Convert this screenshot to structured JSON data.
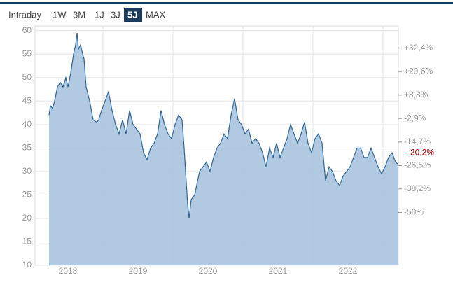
{
  "tabs": [
    "Intraday",
    "1W",
    "3M",
    "1J",
    "3J",
    "5J",
    "MAX"
  ],
  "active_tab": 5,
  "chart_data": {
    "type": "area",
    "color": "#2f6596",
    "fill": "#a9c3de",
    "x": [
      2018.23,
      2018.25,
      2018.28,
      2018.31,
      2018.35,
      2018.39,
      2018.43,
      2018.47,
      2018.5,
      2018.54,
      2018.58,
      2018.61,
      2018.63,
      2018.65,
      2018.68,
      2018.71,
      2018.73,
      2018.76,
      2018.81,
      2018.86,
      2018.91,
      2018.94,
      2018.98,
      2019.03,
      2019.08,
      2019.13,
      2019.18,
      2019.23,
      2019.28,
      2019.33,
      2019.38,
      2019.43,
      2019.48,
      2019.53,
      2019.58,
      2019.63,
      2019.68,
      2019.73,
      2019.78,
      2019.83,
      2019.88,
      2019.93,
      2019.98,
      2020.03,
      2020.08,
      2020.13,
      2020.16,
      2020.18,
      2020.21,
      2020.23,
      2020.26,
      2020.31,
      2020.38,
      2020.43,
      2020.48,
      2020.53,
      2020.58,
      2020.63,
      2020.68,
      2020.73,
      2020.78,
      2020.83,
      2020.88,
      2020.93,
      2020.98,
      2021.03,
      2021.08,
      2021.13,
      2021.18,
      2021.23,
      2021.28,
      2021.33,
      2021.38,
      2021.43,
      2021.48,
      2021.53,
      2021.58,
      2021.63,
      2021.68,
      2021.73,
      2021.78,
      2021.83,
      2021.88,
      2021.93,
      2021.98,
      2022.03,
      2022.08,
      2022.13,
      2022.18,
      2022.23,
      2022.28,
      2022.33,
      2022.38,
      2022.43,
      2022.48,
      2022.53,
      2022.58,
      2022.63,
      2022.68,
      2022.73,
      2022.78,
      2022.83,
      2022.88,
      2022.93,
      2022.98,
      2023.03,
      2023.08,
      2023.13,
      2023.18,
      2023.22
    ],
    "values": [
      42,
      44,
      43.5,
      45,
      48,
      49,
      48,
      50,
      48,
      51,
      55,
      57,
      59.5,
      56,
      57,
      55,
      54,
      48,
      45,
      41,
      40.5,
      41,
      43,
      45,
      47,
      43,
      40,
      38,
      41,
      38,
      43,
      40,
      39,
      38,
      34,
      32.5,
      35,
      36,
      38,
      43,
      40,
      38,
      37,
      40,
      42,
      41,
      35,
      30,
      23,
      20,
      24,
      25,
      30,
      31,
      32,
      30,
      33,
      35,
      36,
      38,
      37,
      42,
      45.5,
      41,
      40,
      38,
      39,
      36,
      37,
      36,
      34,
      31,
      35,
      33,
      36,
      33,
      35,
      37,
      40,
      38,
      36,
      38,
      40.5,
      36,
      34,
      37,
      38,
      36,
      28,
      31,
      30,
      28,
      27,
      29,
      30,
      31,
      33,
      35,
      35,
      33,
      33,
      35,
      33,
      31,
      29.5,
      31,
      33,
      34,
      32,
      31.5
    ],
    "xlim": [
      2018.03,
      2023.22
    ],
    "xticks": [
      {
        "value": 2018.5,
        "label": "2018"
      },
      {
        "value": 2019.5,
        "label": "2019"
      },
      {
        "value": 2020.5,
        "label": "2020"
      },
      {
        "value": 2021.5,
        "label": "2021"
      },
      {
        "value": 2022.5,
        "label": "2022"
      }
    ],
    "xgrid": [
      2019,
      2020,
      2021,
      2022,
      2023
    ],
    "ylim": [
      10,
      61
    ],
    "yticks": [
      10,
      15,
      20,
      25,
      30,
      35,
      40,
      45,
      50,
      55,
      60
    ],
    "y2lim": [
      -76.5,
      43.5
    ],
    "y2ticks": [
      {
        "value": 32.4,
        "label": "+32,4%"
      },
      {
        "value": 20.6,
        "label": "+20,6%"
      },
      {
        "value": 8.8,
        "label": "+8,8%"
      },
      {
        "value": -2.9,
        "label": "-2,9%"
      },
      {
        "value": -14.7,
        "label": "-14,7%"
      },
      {
        "value": -26.5,
        "label": "-26,5%"
      },
      {
        "value": -38.2,
        "label": "-38,2%"
      },
      {
        "value": -50,
        "label": "-50%"
      }
    ],
    "current": {
      "value": -20.2,
      "label": "-20,2%",
      "color": "#c00000"
    },
    "grid": true
  }
}
